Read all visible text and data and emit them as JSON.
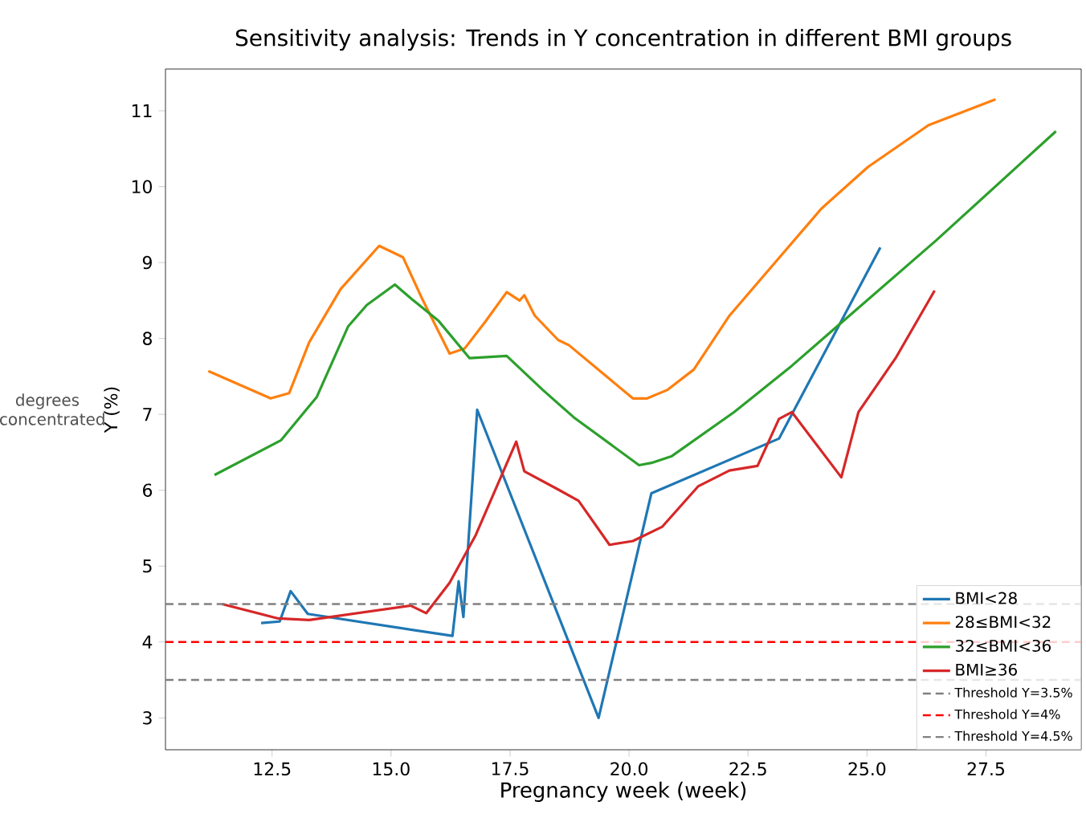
{
  "chart_data": {
    "type": "line",
    "title": "Sensitivity analysis: Trends in Y concentration in different BMI groups",
    "xlabel": "Pregnancy week (week)",
    "ylabel": "Y (%)",
    "annotations": [
      "degrees concentrated"
    ],
    "xlim": [
      10.26,
      29.5
    ],
    "ylim": [
      2.58,
      11.55
    ],
    "xticks": [
      {
        "value": 12.5,
        "label": "12.5"
      },
      {
        "value": 15,
        "label": "15.0"
      },
      {
        "value": 17.5,
        "label": "17.5"
      },
      {
        "value": 20,
        "label": "20.0"
      },
      {
        "value": 22.5,
        "label": "22.5"
      },
      {
        "value": 25,
        "label": "25.0"
      },
      {
        "value": 27.5,
        "label": "27.5"
      }
    ],
    "yticks": [
      3,
      4,
      5,
      6,
      7,
      8,
      9,
      10,
      11
    ],
    "legend": "bottom right",
    "line_style": "solid",
    "marker": "none",
    "series": [
      {
        "name": "BMI<28",
        "color": "#1f77b4",
        "x": [
          12.27,
          12.66,
          12.89,
          13.25,
          16.29,
          16.42,
          16.52,
          16.81,
          19.36,
          20.47,
          23.15,
          25.28
        ],
        "values": [
          4.25,
          4.27,
          4.67,
          4.37,
          4.08,
          4.8,
          4.33,
          7.06,
          3.0,
          5.96,
          6.68,
          9.2
        ]
      },
      {
        "name": "28≤BMI<32",
        "color": "#ff7f0e",
        "x": [
          11.16,
          12.47,
          12.86,
          13.28,
          13.94,
          14.75,
          15.25,
          15.67,
          16.23,
          16.55,
          16.98,
          17.43,
          17.7,
          17.8,
          18.02,
          18.51,
          18.74,
          20.08,
          20.38,
          20.8,
          21.36,
          22.11,
          23.0,
          24.04,
          25.02,
          26.29,
          27.7
        ],
        "values": [
          7.57,
          7.21,
          7.28,
          7.95,
          8.65,
          9.22,
          9.07,
          8.5,
          7.8,
          7.87,
          8.22,
          8.61,
          8.5,
          8.57,
          8.3,
          7.98,
          7.91,
          7.21,
          7.21,
          7.32,
          7.59,
          8.3,
          8.95,
          9.71,
          10.26,
          10.81,
          11.15
        ]
      },
      {
        "name": "32≤BMI<36",
        "color": "#2ca02c",
        "x": [
          11.29,
          12.69,
          13.44,
          14.1,
          14.49,
          15.08,
          15.47,
          16.0,
          16.65,
          17.43,
          18.19,
          18.84,
          20.21,
          20.47,
          20.9,
          22.21,
          23.42,
          24.3,
          26.45,
          28.97
        ],
        "values": [
          6.2,
          6.66,
          7.23,
          8.16,
          8.44,
          8.71,
          8.5,
          8.23,
          7.74,
          7.77,
          7.32,
          6.96,
          6.33,
          6.36,
          6.45,
          7.03,
          7.64,
          8.12,
          9.29,
          10.73
        ]
      },
      {
        "name": "BMI≥36",
        "color": "#d62728",
        "x": [
          11.45,
          12.63,
          13.28,
          15.41,
          15.74,
          16.23,
          16.78,
          17.63,
          17.8,
          18.51,
          18.94,
          19.59,
          20.08,
          20.7,
          21.45,
          22.11,
          22.7,
          23.15,
          23.42,
          24.46,
          24.82,
          25.6,
          26.42
        ],
        "values": [
          4.5,
          4.31,
          4.29,
          4.48,
          4.38,
          4.78,
          5.41,
          6.64,
          6.25,
          6.01,
          5.86,
          5.28,
          5.33,
          5.52,
          6.05,
          6.26,
          6.32,
          6.94,
          7.03,
          6.17,
          7.03,
          7.74,
          8.63
        ]
      }
    ],
    "ref_lines": [
      {
        "axis": "y",
        "value": 3.5,
        "label": "Threshold Y=3.5%",
        "color": "#808080",
        "line_style": "dashed"
      },
      {
        "axis": "y",
        "value": 4,
        "label": "Threshold Y=4%",
        "color": "#ff0000",
        "line_style": "dashed"
      },
      {
        "axis": "y",
        "value": 4.5,
        "label": "Threshold Y=4.5%",
        "color": "#808080",
        "line_style": "dashed"
      }
    ]
  }
}
